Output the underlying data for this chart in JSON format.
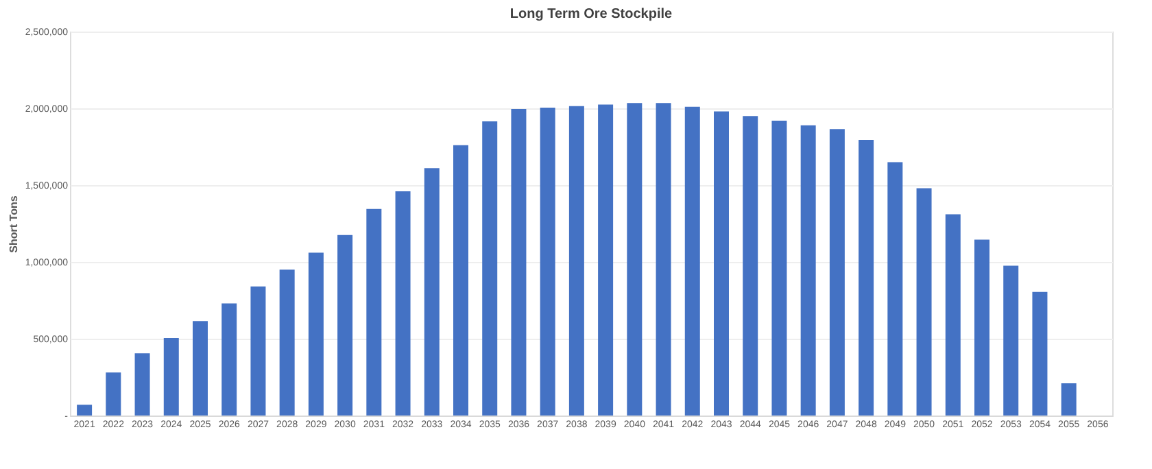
{
  "chart_data": {
    "type": "bar",
    "title": "Long Term Ore Stockpile",
    "ylabel": "Short Tons",
    "categories": [
      "2021",
      "2022",
      "2023",
      "2024",
      "2025",
      "2026",
      "2027",
      "2028",
      "2029",
      "2030",
      "2031",
      "2032",
      "2033",
      "2034",
      "2035",
      "2036",
      "2037",
      "2038",
      "2039",
      "2040",
      "2041",
      "2042",
      "2043",
      "2044",
      "2045",
      "2046",
      "2047",
      "2048",
      "2049",
      "2050",
      "2051",
      "2052",
      "2053",
      "2054",
      "2055",
      "2056"
    ],
    "values": [
      70000,
      280000,
      405000,
      505000,
      615000,
      730000,
      840000,
      950000,
      1060000,
      1175000,
      1345000,
      1460000,
      1610000,
      1760000,
      1915000,
      1995000,
      2005000,
      2015000,
      2025000,
      2035000,
      2035000,
      2010000,
      1980000,
      1950000,
      1920000,
      1890000,
      1865000,
      1795000,
      1650000,
      1480000,
      1310000,
      1145000,
      975000,
      805000,
      210000,
      0
    ],
    "color": "#4472c4",
    "ylim": [
      0,
      2500000
    ],
    "yticks": [
      {
        "value": 0,
        "label": "-"
      },
      {
        "value": 500000,
        "label": "500,000"
      },
      {
        "value": 1000000,
        "label": "1,000,000"
      },
      {
        "value": 1500000,
        "label": "1,500,000"
      },
      {
        "value": 2000000,
        "label": "2,000,000"
      },
      {
        "value": 2500000,
        "label": "2,500,000"
      }
    ],
    "grid": "y"
  }
}
